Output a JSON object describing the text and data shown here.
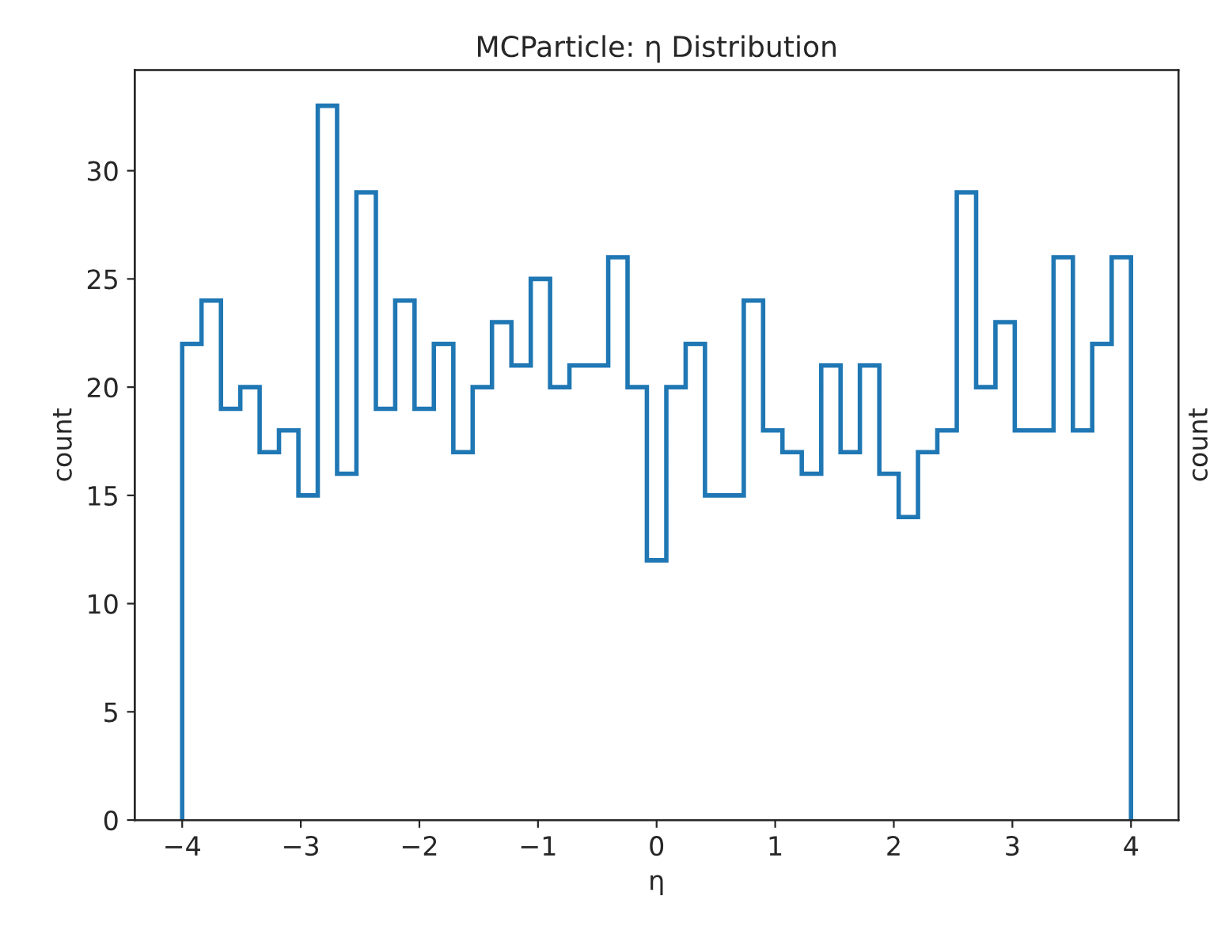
{
  "chart_data": {
    "type": "histogram",
    "title": "MCParticle: η Distribution",
    "xlabel": "η",
    "ylabel": "count",
    "y2label": "count",
    "color": "#1f77b4",
    "bins": [
      -4,
      -3.837,
      -3.673,
      -3.51,
      -3.347,
      -3.184,
      -3.02,
      -2.857,
      -2.694,
      -2.531,
      -2.367,
      -2.204,
      -2.041,
      -1.878,
      -1.714,
      -1.551,
      -1.388,
      -1.224,
      -1.061,
      -0.898,
      -0.735,
      -0.571,
      -0.408,
      -0.245,
      -0.082,
      0.082,
      0.245,
      0.408,
      0.571,
      0.735,
      0.898,
      1.061,
      1.224,
      1.388,
      1.551,
      1.714,
      1.878,
      2.041,
      2.204,
      2.367,
      2.531,
      2.694,
      2.857,
      3.02,
      3.184,
      3.347,
      3.51,
      3.673,
      3.837,
      4
    ],
    "values": [
      22,
      24,
      19,
      20,
      17,
      18,
      15,
      33,
      16,
      29,
      19,
      24,
      19,
      22,
      17,
      20,
      23,
      21,
      25,
      20,
      21,
      21,
      26,
      20,
      12,
      20,
      22,
      15,
      15,
      24,
      18,
      17,
      16,
      21,
      17,
      21,
      16,
      14,
      17,
      18,
      29,
      20,
      23,
      18,
      18,
      26,
      18,
      22,
      26
    ],
    "xlim": [
      -4.4,
      4.4
    ],
    "ylim": [
      0,
      34.65
    ],
    "xticks": [
      {
        "value": -4,
        "label": "−4"
      },
      {
        "value": -3,
        "label": "−3"
      },
      {
        "value": -2,
        "label": "−2"
      },
      {
        "value": -1,
        "label": "−1"
      },
      0,
      1,
      2,
      3,
      4
    ],
    "yticks": [
      0,
      5,
      10,
      15,
      20,
      25,
      30
    ],
    "grid": false
  }
}
